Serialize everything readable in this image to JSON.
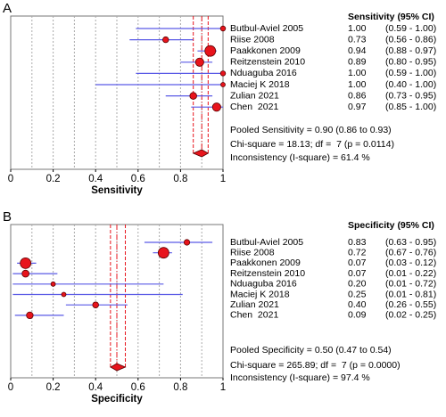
{
  "chart_data": [
    {
      "type": "forest",
      "panel": "A",
      "xlabel": "Sensitivity",
      "header": "Sensitivity (95% CI)",
      "categories": [
        "Butbul-Aviel 2005",
        "Riise 2008",
        "Paakkonen 2009",
        "Reitzenstein 2010",
        "Nduaguba 2016",
        "Maciej K 2018",
        "Zulian 2021",
        "Chen  2021"
      ],
      "values": [
        1,
        0.73,
        0.94,
        0.89,
        1,
        1,
        0.86,
        0.97
      ],
      "value_labels": [
        "1.00",
        "0.73",
        "0.94",
        "0.89",
        "1.00",
        "1.00",
        "0.86",
        "0.97"
      ],
      "lower": [
        0.59,
        0.56,
        0.88,
        0.8,
        0.59,
        0.4,
        0.73,
        0.85
      ],
      "upper": [
        1,
        0.86,
        0.97,
        0.95,
        1,
        1,
        0.95,
        1
      ],
      "interval_labels": [
        "(0.59 - 1.00)",
        "(0.56 - 0.86)",
        "(0.88 - 0.97)",
        "(0.80 - 0.95)",
        "(0.59 - 1.00)",
        "(0.40 - 1.00)",
        "(0.73 - 0.95)",
        "(0.85 - 1.00)"
      ],
      "pooled": {
        "value": 0.9,
        "lower": 0.86,
        "upper": 0.93,
        "label": "Pooled Sensitivity = 0.90 (0.86 to 0.93)"
      },
      "notes": [
        "Chi-square = 18.13; df =  7 (p = 0.0114)",
        "Inconsistency (I-square) = 61.4 %"
      ],
      "xlim": [
        0,
        1
      ],
      "xticks": [
        0,
        0.2,
        0.4,
        0.6,
        0.8,
        1
      ],
      "xgrid": [
        0.1,
        0.2,
        0.3,
        0.4,
        0.5,
        0.6,
        0.7,
        0.8,
        0.9
      ],
      "marker_color": "#e8141c",
      "ci_color": "#5a5ae6"
    },
    {
      "type": "forest",
      "panel": "B",
      "xlabel": "Specificity",
      "header": "Specificity (95% CI)",
      "categories": [
        "Butbul-Aviel 2005",
        "Riise 2008",
        "Paakkonen 2009",
        "Reitzenstein 2010",
        "Nduaguba 2016",
        "Maciej K 2018",
        "Zulian 2021",
        "Chen  2021"
      ],
      "values": [
        0.83,
        0.72,
        0.07,
        0.07,
        0.2,
        0.25,
        0.4,
        0.09
      ],
      "value_labels": [
        "0.83",
        "0.72",
        "0.07",
        "0.07",
        "0.20",
        "0.25",
        "0.40",
        "0.09"
      ],
      "lower": [
        0.63,
        0.67,
        0.03,
        0.01,
        0.01,
        0.01,
        0.26,
        0.02
      ],
      "upper": [
        0.95,
        0.76,
        0.12,
        0.22,
        0.72,
        0.81,
        0.55,
        0.25
      ],
      "interval_labels": [
        "(0.63 - 0.95)",
        "(0.67 - 0.76)",
        "(0.03 - 0.12)",
        "(0.01 - 0.22)",
        "(0.01 - 0.72)",
        "(0.01 - 0.81)",
        "(0.26 - 0.55)",
        "(0.02 - 0.25)"
      ],
      "pooled": {
        "value": 0.5,
        "lower": 0.47,
        "upper": 0.54,
        "label": "Pooled Specificity = 0.50 (0.47 to 0.54)"
      },
      "notes": [
        "Chi-square = 265.89; df =  7 (p = 0.0000)",
        "Inconsistency (I-square) = 97.4 %"
      ],
      "xlim": [
        0,
        1
      ],
      "xticks": [
        0,
        0.2,
        0.4,
        0.6,
        0.8,
        1
      ],
      "xgrid": [
        0.1,
        0.2,
        0.3,
        0.4,
        0.5,
        0.6,
        0.7,
        0.8,
        0.9
      ],
      "marker_color": "#e8141c",
      "ci_color": "#5a5ae6"
    }
  ]
}
